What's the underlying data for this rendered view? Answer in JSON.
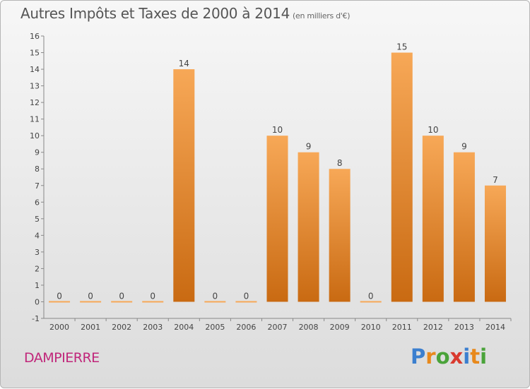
{
  "header": {
    "title": "Autres Impôts et Taxes de 2000 à 2014",
    "unit": "(en milliers d'€)"
  },
  "footer": {
    "town": "DAMPIERRE",
    "logo_letters": [
      "P",
      "r",
      "o",
      "x",
      "i",
      "t",
      "i"
    ],
    "logo_colors": [
      "#3b7fcf",
      "#e8891c",
      "#4aa33a",
      "#d93a2f",
      "#3b7fcf",
      "#e8891c",
      "#4aa33a"
    ]
  },
  "colors": {
    "bar_top": "#f7a857",
    "bar_bottom": "#c96a12",
    "accent": "#c0267a"
  },
  "chart_data": {
    "type": "bar",
    "title": "Autres Impôts et Taxes de 2000 à 2014",
    "subtitle": "(en milliers d'€)",
    "categories": [
      "2000",
      "2001",
      "2002",
      "2003",
      "2004",
      "2005",
      "2006",
      "2007",
      "2008",
      "2009",
      "2010",
      "2011",
      "2012",
      "2013",
      "2014"
    ],
    "values": [
      0,
      0,
      0,
      0,
      14,
      0,
      0,
      10,
      9,
      8,
      0,
      15,
      10,
      9,
      7
    ],
    "ylim": [
      -1,
      16
    ],
    "yticks": [
      -1,
      0,
      1,
      2,
      3,
      4,
      5,
      6,
      7,
      8,
      9,
      10,
      11,
      12,
      13,
      14,
      15,
      16
    ],
    "xlabel": "",
    "ylabel": "",
    "grid": false,
    "data_labels": true
  }
}
